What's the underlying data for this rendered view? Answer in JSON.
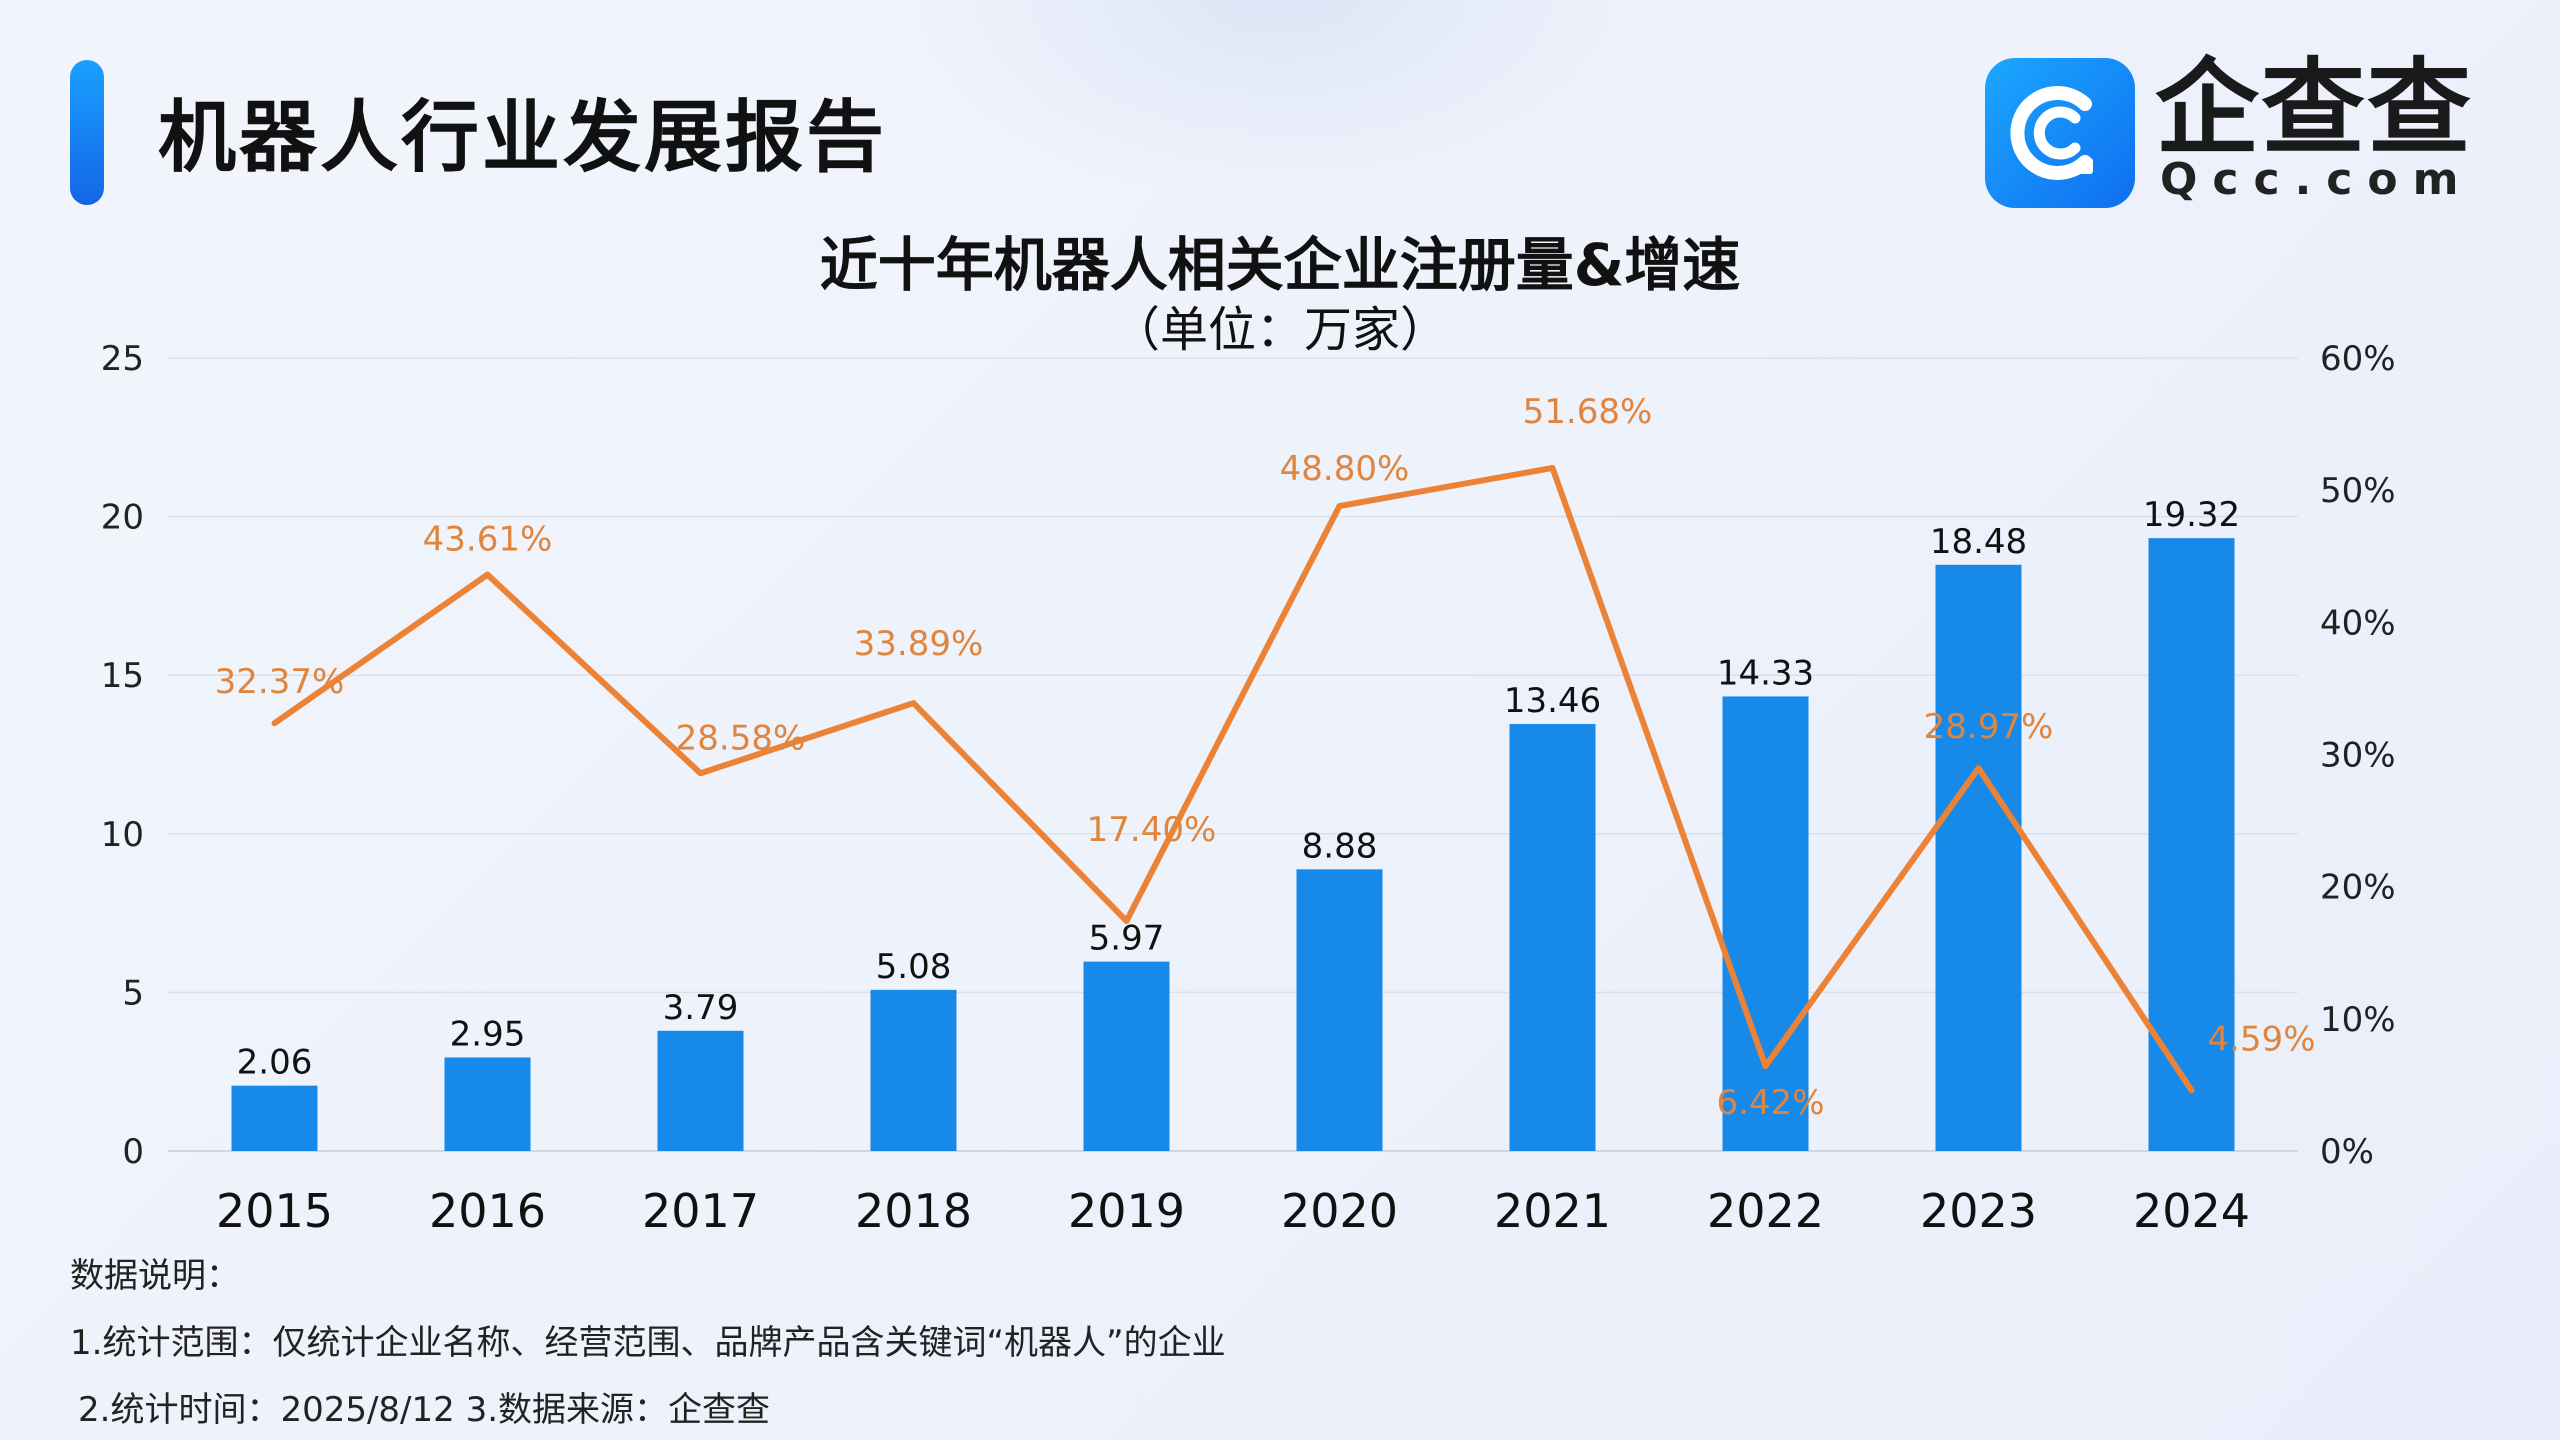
{
  "header": {
    "report_title": "机器人行业发展报告"
  },
  "brand": {
    "name": "企查查",
    "domain": "Qcc.com",
    "logo_icon": "qcc-logo-icon"
  },
  "colors": {
    "bar": "#1789e8",
    "line": "#ec8236",
    "line_label": "#e0853e",
    "accent": "#1a8cff"
  },
  "chart_data": {
    "type": "bar",
    "title": "近十年机器人相关企业注册量&增速",
    "subtitle": "（单位：万家）",
    "categories": [
      "2015",
      "2016",
      "2017",
      "2018",
      "2019",
      "2020",
      "2021",
      "2022",
      "2023",
      "2024"
    ],
    "series": [
      {
        "type": "bar",
        "axis": "left",
        "values": [
          2.06,
          2.95,
          3.79,
          5.08,
          5.97,
          8.88,
          13.46,
          14.33,
          18.48,
          19.32
        ],
        "labels": [
          "2.06",
          "2.95",
          "3.79",
          "5.08",
          "5.97",
          "8.88",
          "13.46",
          "14.33",
          "18.48",
          "19.32"
        ]
      },
      {
        "type": "line",
        "axis": "right",
        "values": [
          32.37,
          43.61,
          28.58,
          33.89,
          17.4,
          48.8,
          51.68,
          6.42,
          28.97,
          4.59
        ],
        "labels": [
          "32.37%",
          "43.61%",
          "28.58%",
          "33.89%",
          "17.40%",
          "48.80%",
          "51.68%",
          "6.42%",
          "28.97%",
          "4.59%"
        ]
      }
    ],
    "y_left": {
      "ylim": [
        0,
        25
      ],
      "ticks": [
        "0",
        "5",
        "10",
        "15",
        "20",
        "25"
      ]
    },
    "y_right": {
      "ylim": [
        0,
        60
      ],
      "ticks": [
        "0%",
        "10%",
        "20%",
        "30%",
        "40%",
        "50%",
        "60%"
      ]
    },
    "grid": true
  },
  "notes": {
    "heading": "数据说明：",
    "line1": "1.统计范围：仅统计企业名称、经营范围、品牌产品含关键词“机器人”的企业",
    "line2": "2.统计时间：2025/8/12  3.数据来源：企查查"
  }
}
